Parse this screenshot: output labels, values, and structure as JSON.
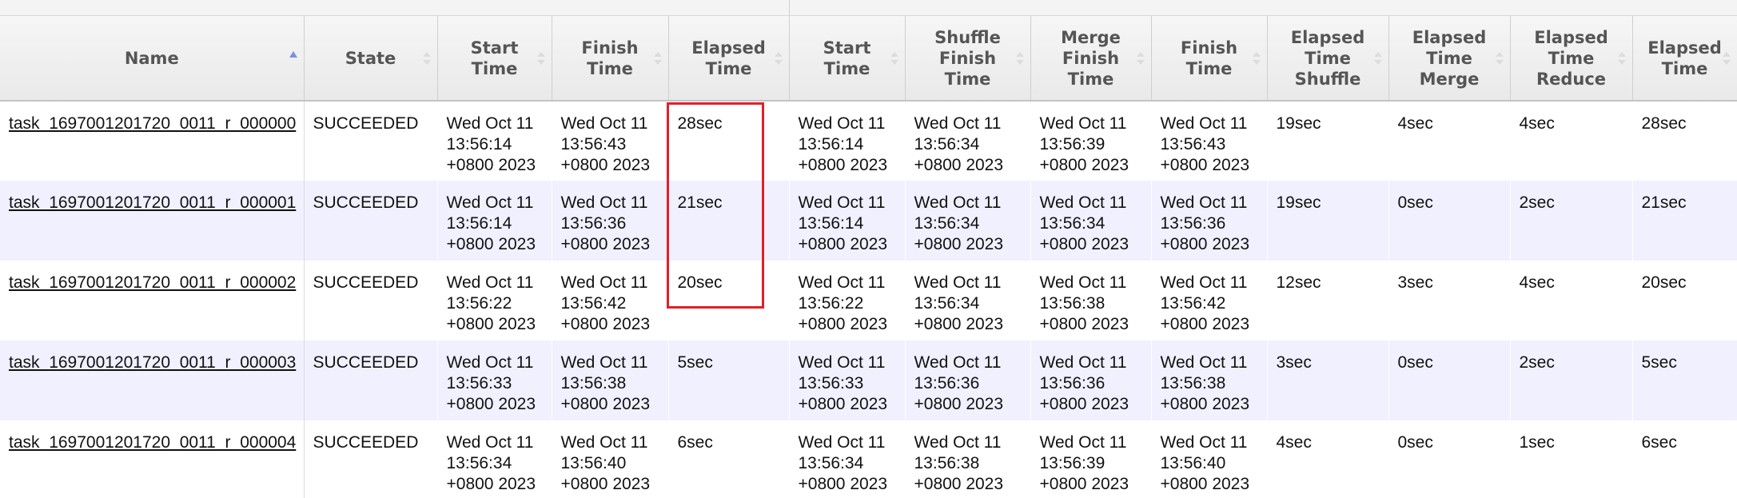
{
  "table": {
    "headers": [
      "Name",
      "State",
      "Start Time",
      "Finish Time",
      "Elapsed Time",
      "Start Time",
      "Shuffle Finish Time",
      "Merge Finish Time",
      "Finish Time",
      "Elapsed Time Shuffle",
      "Elapsed Time Merge",
      "Elapsed Time Reduce",
      "Elapsed Time"
    ],
    "rows": [
      {
        "name": "task_1697001201720_0011_r_000000",
        "state": "SUCCEEDED",
        "start": [
          "Wed Oct 11",
          "13:56:14",
          "+0800 2023"
        ],
        "finish": [
          "Wed Oct 11",
          "13:56:43",
          "+0800 2023"
        ],
        "elapsed": "28sec",
        "attempt_start": [
          "Wed Oct 11",
          "13:56:14",
          "+0800 2023"
        ],
        "shuffle_finish": [
          "Wed Oct 11",
          "13:56:34",
          "+0800 2023"
        ],
        "merge_finish": [
          "Wed Oct 11",
          "13:56:39",
          "+0800 2023"
        ],
        "attempt_finish": [
          "Wed Oct 11",
          "13:56:43",
          "+0800 2023"
        ],
        "elapsed_shuffle": "19sec",
        "elapsed_merge": "4sec",
        "elapsed_reduce": "4sec",
        "attempt_elapsed": "28sec"
      },
      {
        "name": "task_1697001201720_0011_r_000001",
        "state": "SUCCEEDED",
        "start": [
          "Wed Oct 11",
          "13:56:14",
          "+0800 2023"
        ],
        "finish": [
          "Wed Oct 11",
          "13:56:36",
          "+0800 2023"
        ],
        "elapsed": "21sec",
        "attempt_start": [
          "Wed Oct 11",
          "13:56:14",
          "+0800 2023"
        ],
        "shuffle_finish": [
          "Wed Oct 11",
          "13:56:34",
          "+0800 2023"
        ],
        "merge_finish": [
          "Wed Oct 11",
          "13:56:34",
          "+0800 2023"
        ],
        "attempt_finish": [
          "Wed Oct 11",
          "13:56:36",
          "+0800 2023"
        ],
        "elapsed_shuffle": "19sec",
        "elapsed_merge": "0sec",
        "elapsed_reduce": "2sec",
        "attempt_elapsed": "21sec"
      },
      {
        "name": "task_1697001201720_0011_r_000002",
        "state": "SUCCEEDED",
        "start": [
          "Wed Oct 11",
          "13:56:22",
          "+0800 2023"
        ],
        "finish": [
          "Wed Oct 11",
          "13:56:42",
          "+0800 2023"
        ],
        "elapsed": "20sec",
        "attempt_start": [
          "Wed Oct 11",
          "13:56:22",
          "+0800 2023"
        ],
        "shuffle_finish": [
          "Wed Oct 11",
          "13:56:34",
          "+0800 2023"
        ],
        "merge_finish": [
          "Wed Oct 11",
          "13:56:38",
          "+0800 2023"
        ],
        "attempt_finish": [
          "Wed Oct 11",
          "13:56:42",
          "+0800 2023"
        ],
        "elapsed_shuffle": "12sec",
        "elapsed_merge": "3sec",
        "elapsed_reduce": "4sec",
        "attempt_elapsed": "20sec"
      },
      {
        "name": "task_1697001201720_0011_r_000003",
        "state": "SUCCEEDED",
        "start": [
          "Wed Oct 11",
          "13:56:33",
          "+0800 2023"
        ],
        "finish": [
          "Wed Oct 11",
          "13:56:38",
          "+0800 2023"
        ],
        "elapsed": "5sec",
        "attempt_start": [
          "Wed Oct 11",
          "13:56:33",
          "+0800 2023"
        ],
        "shuffle_finish": [
          "Wed Oct 11",
          "13:56:36",
          "+0800 2023"
        ],
        "merge_finish": [
          "Wed Oct 11",
          "13:56:36",
          "+0800 2023"
        ],
        "attempt_finish": [
          "Wed Oct 11",
          "13:56:38",
          "+0800 2023"
        ],
        "elapsed_shuffle": "3sec",
        "elapsed_merge": "0sec",
        "elapsed_reduce": "2sec",
        "attempt_elapsed": "5sec"
      },
      {
        "name": "task_1697001201720_0011_r_000004",
        "state": "SUCCEEDED",
        "start": [
          "Wed Oct 11",
          "13:56:34",
          "+0800 2023"
        ],
        "finish": [
          "Wed Oct 11",
          "13:56:40",
          "+0800 2023"
        ],
        "elapsed": "6sec",
        "attempt_start": [
          "Wed Oct 11",
          "13:56:34",
          "+0800 2023"
        ],
        "shuffle_finish": [
          "Wed Oct 11",
          "13:56:38",
          "+0800 2023"
        ],
        "merge_finish": [
          "Wed Oct 11",
          "13:56:39",
          "+0800 2023"
        ],
        "attempt_finish": [
          "Wed Oct 11",
          "13:56:40",
          "+0800 2023"
        ],
        "elapsed_shuffle": "4sec",
        "elapsed_merge": "0sec",
        "elapsed_reduce": "1sec",
        "attempt_elapsed": "6sec"
      }
    ]
  },
  "colors": {
    "highlight_border": "#e0202a",
    "even_row": "#f0f0ff",
    "sort_active": "#7b8fe0"
  }
}
